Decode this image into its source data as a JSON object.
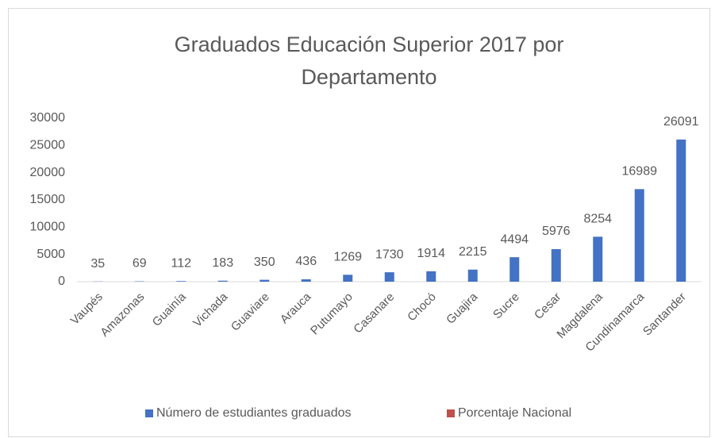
{
  "chart_data": {
    "type": "bar",
    "title": [
      "Graduados Educación Superior 2017 por",
      "Departamento"
    ],
    "categories": [
      "Vaupés",
      "Amazonas",
      "Guainía",
      "Vichada",
      "Guaviare",
      "Arauca",
      "Putumayo",
      "Casanare",
      "Chocó",
      "Guajira",
      "Sucre",
      "Cesar",
      "Magdalena",
      "Cundinamarca",
      "Santander"
    ],
    "series": [
      {
        "name": "Número de estudiantes graduados",
        "color": "#4472c4",
        "values": [
          35,
          69,
          112,
          183,
          350,
          436,
          1269,
          1730,
          1914,
          2215,
          4494,
          5976,
          8254,
          16989,
          26091
        ]
      },
      {
        "name": "Porcentaje Nacional",
        "color": "#c0504d",
        "values": [
          null,
          null,
          null,
          null,
          null,
          null,
          null,
          null,
          null,
          null,
          null,
          null,
          null,
          null,
          null
        ]
      }
    ],
    "ylim": [
      0,
      30000
    ],
    "yticks": [
      0,
      5000,
      10000,
      15000,
      20000,
      25000,
      30000
    ],
    "grid": false,
    "legend": "bottom"
  }
}
